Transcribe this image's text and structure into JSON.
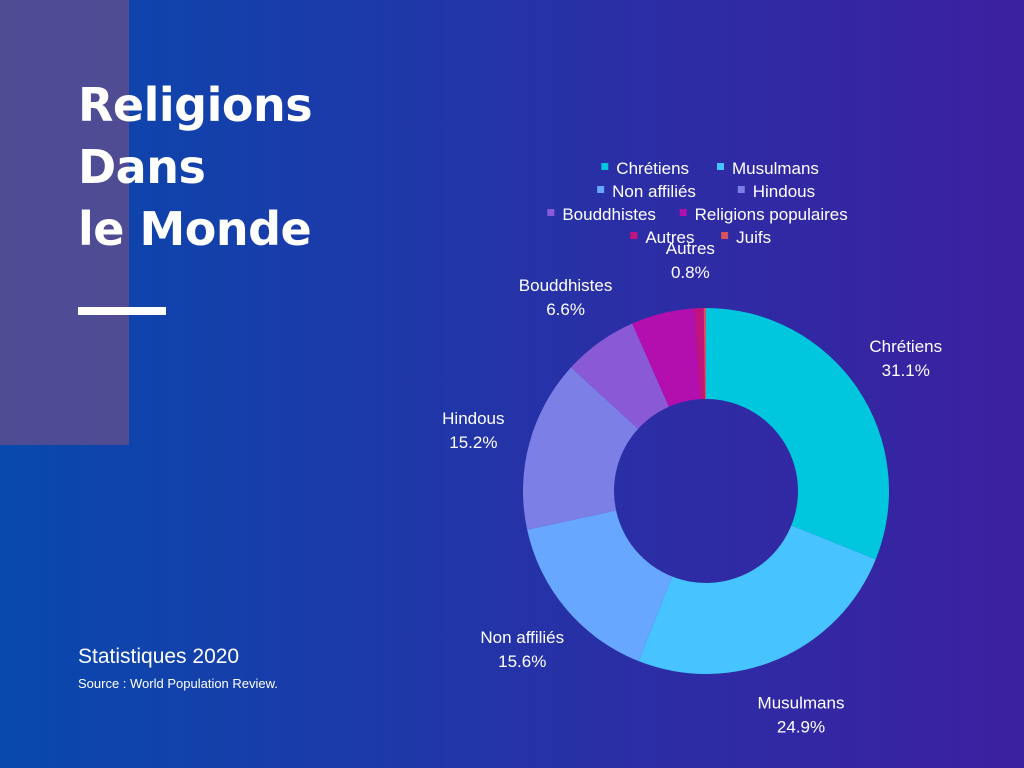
{
  "header": {
    "title_lines": [
      "Religions",
      "Dans",
      "le Monde"
    ]
  },
  "footer": {
    "subtitle": "Statistiques 2020",
    "source": "Source : World Population Review."
  },
  "chart_data": {
    "type": "pie",
    "donut": true,
    "legend_position": "top",
    "categories": [
      "Chrétiens",
      "Musulmans",
      "Non affiliés",
      "Hindous",
      "Bouddhistes",
      "Religions populaires",
      "Autres",
      "Juifs"
    ],
    "values": [
      31.1,
      24.9,
      15.6,
      15.2,
      6.6,
      5.6,
      0.8,
      0.2
    ],
    "value_labels": [
      "31.1%",
      "24.9%",
      "15.6%",
      "15.2%",
      "6.6%",
      "",
      "0.8%",
      ""
    ],
    "colors": [
      "#00c7dd",
      "#47c3ff",
      "#67a7ff",
      "#7c7fe6",
      "#8a5ad6",
      "#b20fae",
      "#c3147e",
      "#d6535d"
    ]
  }
}
